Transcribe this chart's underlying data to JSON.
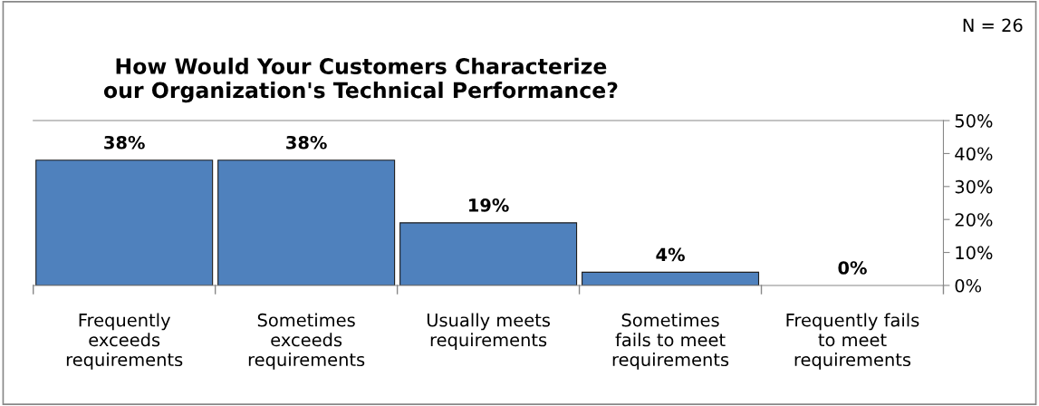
{
  "chart_data": {
    "type": "bar",
    "title": "How Would Your Customers Characterize\nour Organization's Technical Performance?",
    "categories": [
      "Frequently\nexceeds\nrequirements",
      "Sometimes\nexceeds\nrequirements",
      "Usually meets\nrequirements",
      "Sometimes\nfails to meet\nrequirements",
      "Frequently fails\nto meet\nrequirements"
    ],
    "values": [
      38,
      38,
      19,
      4,
      0
    ],
    "value_labels": [
      "38%",
      "38%",
      "19%",
      "4%",
      "0%"
    ],
    "color": "#4f81bd",
    "ylim": [
      0,
      50
    ],
    "yticks": [
      {
        "value": 0,
        "label": "0%"
      },
      {
        "value": 10,
        "label": "10%"
      },
      {
        "value": 20,
        "label": "20%"
      },
      {
        "value": 30,
        "label": "30%"
      },
      {
        "value": 40,
        "label": "40%"
      },
      {
        "value": 50,
        "label": "50%"
      }
    ],
    "annotations": [
      "N = 26"
    ],
    "grid": false,
    "legend": false
  }
}
